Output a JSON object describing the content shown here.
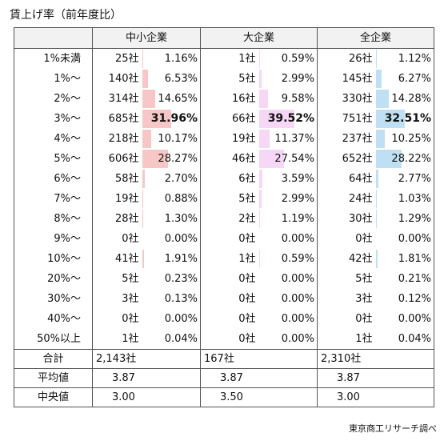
{
  "title": "賃上げ率（前年度比）",
  "source": "東京商工リサーチ調べ",
  "headers": [
    "中小企業",
    "大企業",
    "全企業"
  ],
  "colors": {
    "small": "#f7c7c7",
    "large": "#f6d7f5",
    "all": "#bfe0f3"
  },
  "rows": [
    {
      "label": "1%未満",
      "small": [
        "25社",
        "1.16%"
      ],
      "large": [
        "1社",
        "0.59%"
      ],
      "all": [
        "26社",
        "1.12%"
      ]
    },
    {
      "label": "1%～",
      "small": [
        "140社",
        "6.53%"
      ],
      "large": [
        "5社",
        "2.99%"
      ],
      "all": [
        "145社",
        "6.27%"
      ]
    },
    {
      "label": "2%～",
      "small": [
        "314社",
        "14.65%"
      ],
      "large": [
        "16社",
        "9.58%"
      ],
      "all": [
        "330社",
        "14.28%"
      ]
    },
    {
      "label": "3%～",
      "small": [
        "685社",
        "31.96%"
      ],
      "large": [
        "66社",
        "39.52%"
      ],
      "all": [
        "751社",
        "32.51%"
      ]
    },
    {
      "label": "4%～",
      "small": [
        "218社",
        "10.17%"
      ],
      "large": [
        "19社",
        "11.37%"
      ],
      "all": [
        "237社",
        "10.25%"
      ]
    },
    {
      "label": "5%～",
      "small": [
        "606社",
        "28.27%"
      ],
      "large": [
        "46社",
        "27.54%"
      ],
      "all": [
        "652社",
        "28.22%"
      ]
    },
    {
      "label": "6%～",
      "small": [
        "58社",
        "2.70%"
      ],
      "large": [
        "6社",
        "3.59%"
      ],
      "all": [
        "64社",
        "2.77%"
      ]
    },
    {
      "label": "7%～",
      "small": [
        "19社",
        "0.88%"
      ],
      "large": [
        "5社",
        "2.99%"
      ],
      "all": [
        "24社",
        "1.03%"
      ]
    },
    {
      "label": "8%～",
      "small": [
        "28社",
        "1.30%"
      ],
      "large": [
        "2社",
        "1.19%"
      ],
      "all": [
        "30社",
        "1.29%"
      ]
    },
    {
      "label": "9%～",
      "small": [
        "0社",
        "0.00%"
      ],
      "large": [
        "0社",
        "0.00%"
      ],
      "all": [
        "0社",
        "0.00%"
      ]
    },
    {
      "label": "10%～",
      "small": [
        "41社",
        "1.91%"
      ],
      "large": [
        "1社",
        "0.59%"
      ],
      "all": [
        "42社",
        "1.81%"
      ]
    },
    {
      "label": "20%～",
      "small": [
        "5社",
        "0.23%"
      ],
      "large": [
        "0社",
        "0.00%"
      ],
      "all": [
        "5社",
        "0.21%"
      ]
    },
    {
      "label": "30%～",
      "small": [
        "3社",
        "0.13%"
      ],
      "large": [
        "0社",
        "0.00%"
      ],
      "all": [
        "3社",
        "0.12%"
      ]
    },
    {
      "label": "40%～",
      "small": [
        "0社",
        "0.00%"
      ],
      "large": [
        "0社",
        "0.00%"
      ],
      "all": [
        "0社",
        "0.00%"
      ]
    },
    {
      "label": "50%以上",
      "small": [
        "1社",
        "0.04%"
      ],
      "large": [
        "0社",
        "0.00%"
      ],
      "all": [
        "1社",
        "0.04%"
      ]
    }
  ],
  "summary": [
    {
      "label": "合計",
      "small": "2,143社",
      "large": "167社",
      "all": "2,310社"
    },
    {
      "label": "平均値",
      "small": "3.87",
      "large": "3.87",
      "all": "3.87"
    },
    {
      "label": "中央値",
      "small": "3.00",
      "large": "3.50",
      "all": "3.00"
    }
  ]
}
